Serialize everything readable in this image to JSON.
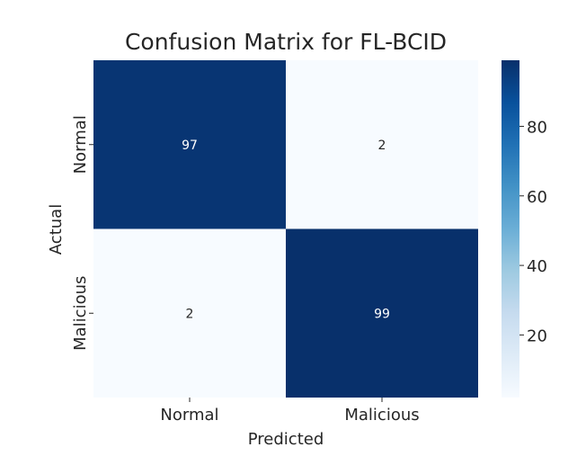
{
  "chart_data": {
    "type": "heatmap",
    "title": "Confusion Matrix for FL-BCID",
    "xlabel": "Predicted",
    "ylabel": "Actual",
    "x_categories": [
      "Normal",
      "Malicious"
    ],
    "y_categories": [
      "Normal",
      "Malicious"
    ],
    "values": [
      [
        97,
        2
      ],
      [
        2,
        99
      ]
    ],
    "colormap": "Blues",
    "colorbar": {
      "range": [
        2,
        99
      ],
      "ticks": [
        20,
        40,
        60,
        80
      ],
      "tick_labels": [
        "20",
        "40",
        "60",
        "80"
      ]
    },
    "colors": {
      "high": "#08306b",
      "low": "#f7fbff",
      "annotation_on_dark": "#ffffff",
      "annotation_on_light": "#262626"
    }
  }
}
